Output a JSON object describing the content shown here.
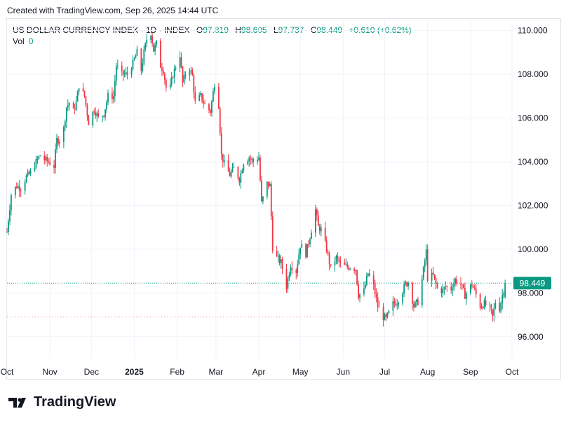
{
  "header": {
    "created": "Created with TradingView.com, Sep 26, 2025 14:44 UTC"
  },
  "legend": {
    "symbol": "US DOLLAR CURRENCY INDEX · 1D · INDEX",
    "o_label": "O",
    "o_value": "97.819",
    "h_label": "H",
    "h_value": "98.605",
    "l_label": "L",
    "l_value": "97.737",
    "c_label": "C",
    "c_value": "98.449",
    "change": "+0.610 (+0.62%)",
    "vol_label": "Vol",
    "vol_value": "0"
  },
  "colors": {
    "up": "#089981",
    "down": "#f23645",
    "grid": "#f0f3fa",
    "price_line": "#089981",
    "low_line": "#f23645"
  },
  "footer": {
    "brand": "TradingView"
  },
  "chart_data": {
    "type": "candlestick",
    "title": "US DOLLAR CURRENCY INDEX",
    "interval": "1D",
    "y_axis": {
      "ticks": [
        96,
        98,
        100,
        102,
        104,
        106,
        108,
        110
      ],
      "tick_labels": [
        "96.000",
        "98.000",
        "100.000",
        "102.000",
        "104.000",
        "106.000",
        "108.000",
        "110.000"
      ],
      "ylim": [
        95.0,
        110.5
      ],
      "position": "right"
    },
    "x_axis": {
      "tick_labels": [
        "Oct",
        "Nov",
        "Dec",
        "2025",
        "Feb",
        "Mar",
        "Apr",
        "May",
        "Jun",
        "Jul",
        "Aug",
        "Sep",
        "Oct"
      ],
      "tick_dates": [
        "2024-10-01",
        "2024-11-01",
        "2024-12-01",
        "2025-01-01",
        "2025-02-01",
        "2025-03-01",
        "2025-04-01",
        "2025-05-01",
        "2025-06-01",
        "2025-07-01",
        "2025-08-01",
        "2025-09-01",
        "2025-10-01"
      ],
      "xlim": [
        "2024-10-01",
        "2025-10-01"
      ]
    },
    "current_price": 98.449,
    "current_price_label": "98.449",
    "low_marker": 96.9,
    "grid": true,
    "closes": [
      [
        "2024-10-01",
        100.8
      ],
      [
        "2024-10-04",
        102.5
      ],
      [
        "2024-10-08",
        102.9
      ],
      [
        "2024-10-11",
        102.8
      ],
      [
        "2024-10-15",
        103.3
      ],
      [
        "2024-10-18",
        103.5
      ],
      [
        "2024-10-22",
        104.0
      ],
      [
        "2024-10-25",
        104.3
      ],
      [
        "2024-10-28",
        104.1
      ],
      [
        "2024-10-31",
        104.0
      ],
      [
        "2024-11-04",
        103.8
      ],
      [
        "2024-11-06",
        105.0
      ],
      [
        "2024-11-08",
        105.0
      ],
      [
        "2024-11-11",
        105.5
      ],
      [
        "2024-11-13",
        106.5
      ],
      [
        "2024-11-15",
        106.7
      ],
      [
        "2024-11-18",
        106.3
      ],
      [
        "2024-11-20",
        106.7
      ],
      [
        "2024-11-22",
        107.5
      ],
      [
        "2024-11-26",
        107.0
      ],
      [
        "2024-11-29",
        105.8
      ],
      [
        "2024-12-03",
        106.4
      ],
      [
        "2024-12-06",
        106.0
      ],
      [
        "2024-12-10",
        106.2
      ],
      [
        "2024-12-13",
        107.0
      ],
      [
        "2024-12-17",
        107.0
      ],
      [
        "2024-12-19",
        108.4
      ],
      [
        "2024-12-23",
        108.0
      ],
      [
        "2024-12-27",
        108.0
      ],
      [
        "2024-12-31",
        108.5
      ],
      [
        "2025-01-03",
        109.0
      ],
      [
        "2025-01-06",
        108.2
      ],
      [
        "2025-01-08",
        109.0
      ],
      [
        "2025-01-10",
        109.6
      ],
      [
        "2025-01-13",
        109.9
      ],
      [
        "2025-01-15",
        109.1
      ],
      [
        "2025-01-17",
        109.4
      ],
      [
        "2025-01-20",
        108.4
      ],
      [
        "2025-01-22",
        108.2
      ],
      [
        "2025-01-24",
        107.4
      ],
      [
        "2025-01-27",
        107.4
      ],
      [
        "2025-01-29",
        108.0
      ],
      [
        "2025-02-03",
        108.9
      ],
      [
        "2025-02-05",
        107.6
      ],
      [
        "2025-02-07",
        108.0
      ],
      [
        "2025-02-10",
        108.3
      ],
      [
        "2025-02-12",
        107.9
      ],
      [
        "2025-02-14",
        106.7
      ],
      [
        "2025-02-18",
        107.0
      ],
      [
        "2025-02-21",
        106.6
      ],
      [
        "2025-02-25",
        106.3
      ],
      [
        "2025-02-28",
        107.6
      ],
      [
        "2025-03-03",
        106.6
      ],
      [
        "2025-03-05",
        104.3
      ],
      [
        "2025-03-07",
        103.9
      ],
      [
        "2025-03-11",
        103.4
      ],
      [
        "2025-03-14",
        103.7
      ],
      [
        "2025-03-18",
        103.2
      ],
      [
        "2025-03-21",
        104.0
      ],
      [
        "2025-03-25",
        104.2
      ],
      [
        "2025-03-28",
        104.0
      ],
      [
        "2025-04-01",
        104.2
      ],
      [
        "2025-04-03",
        102.1
      ],
      [
        "2025-04-07",
        103.0
      ],
      [
        "2025-04-09",
        102.9
      ],
      [
        "2025-04-11",
        100.1
      ],
      [
        "2025-04-14",
        99.6
      ],
      [
        "2025-04-17",
        99.4
      ],
      [
        "2025-04-21",
        98.3
      ],
      [
        "2025-04-24",
        99.3
      ],
      [
        "2025-04-28",
        99.0
      ],
      [
        "2025-05-01",
        100.2
      ],
      [
        "2025-05-05",
        99.8
      ],
      [
        "2025-05-08",
        100.6
      ],
      [
        "2025-05-12",
        101.8
      ],
      [
        "2025-05-14",
        101.0
      ],
      [
        "2025-05-16",
        100.9
      ],
      [
        "2025-05-20",
        100.0
      ],
      [
        "2025-05-23",
        99.1
      ],
      [
        "2025-05-27",
        99.6
      ],
      [
        "2025-05-30",
        99.3
      ],
      [
        "2025-06-03",
        99.2
      ],
      [
        "2025-06-06",
        99.2
      ],
      [
        "2025-06-10",
        99.1
      ],
      [
        "2025-06-12",
        97.9
      ],
      [
        "2025-06-16",
        98.1
      ],
      [
        "2025-06-19",
        98.9
      ],
      [
        "2025-06-23",
        98.3
      ],
      [
        "2025-06-26",
        97.4
      ],
      [
        "2025-06-30",
        96.9
      ],
      [
        "2025-07-02",
        96.8
      ],
      [
        "2025-07-07",
        97.5
      ],
      [
        "2025-07-10",
        97.6
      ],
      [
        "2025-07-14",
        98.1
      ],
      [
        "2025-07-16",
        98.4
      ],
      [
        "2025-07-18",
        98.5
      ],
      [
        "2025-07-22",
        97.4
      ],
      [
        "2025-07-25",
        97.6
      ],
      [
        "2025-07-28",
        98.6
      ],
      [
        "2025-07-31",
        99.9
      ],
      [
        "2025-08-01",
        98.7
      ],
      [
        "2025-08-05",
        98.8
      ],
      [
        "2025-08-08",
        98.2
      ],
      [
        "2025-08-12",
        98.1
      ],
      [
        "2025-08-14",
        98.3
      ],
      [
        "2025-08-18",
        98.2
      ],
      [
        "2025-08-21",
        98.6
      ],
      [
        "2025-08-25",
        98.4
      ],
      [
        "2025-08-28",
        97.9
      ],
      [
        "2025-09-02",
        98.4
      ],
      [
        "2025-09-04",
        98.1
      ],
      [
        "2025-09-08",
        97.4
      ],
      [
        "2025-09-11",
        97.5
      ],
      [
        "2025-09-15",
        97.3
      ],
      [
        "2025-09-17",
        96.9
      ],
      [
        "2025-09-19",
        97.6
      ],
      [
        "2025-09-22",
        97.3
      ],
      [
        "2025-09-24",
        97.9
      ],
      [
        "2025-09-26",
        98.4
      ]
    ]
  }
}
